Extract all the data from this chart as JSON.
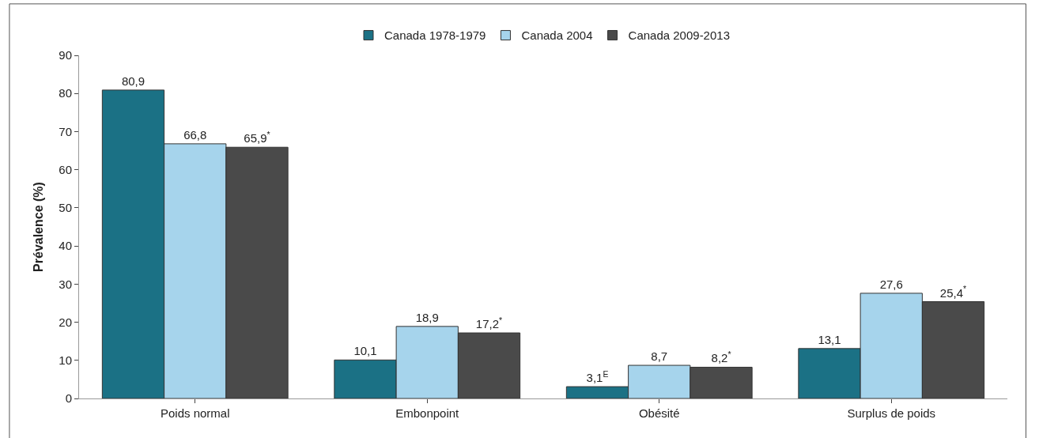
{
  "chart_data": {
    "type": "bar",
    "ylabel": "Prévalence (%)",
    "categories": [
      "Poids normal",
      "Embonpoint",
      "Obésité",
      "Surplus de poids"
    ],
    "series": [
      {
        "name": "Canada 1978-1979",
        "color": "#1b7185",
        "values": [
          80.9,
          10.1,
          3.1,
          13.1
        ],
        "value_labels": [
          "80,9",
          "10,1",
          "3,1$^{E}$",
          "13,1"
        ]
      },
      {
        "name": "Canada 2004",
        "color": "#a6d4ec",
        "values": [
          66.8,
          18.9,
          8.7,
          27.6
        ],
        "value_labels": [
          "66,8",
          "18,9",
          "8,7",
          "27,6"
        ]
      },
      {
        "name": "Canada 2009-2013",
        "color": "#4a4a4a",
        "values": [
          65.9,
          17.2,
          8.2,
          25.4
        ],
        "value_labels": [
          "65,9$^{*}$",
          "17,2$^{*}$",
          "8,2$^{*}$",
          "25,4$^{*}$"
        ]
      }
    ],
    "ylim": [
      0,
      90
    ],
    "yticks": [
      0,
      10,
      20,
      30,
      40,
      50,
      60,
      70,
      80,
      90
    ],
    "legend": "top"
  }
}
